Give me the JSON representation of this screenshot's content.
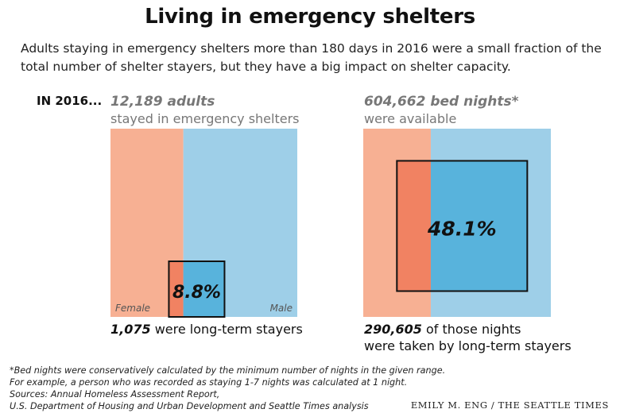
{
  "title": "Living in emergency shelters",
  "subtitle": "Adults staying in emergency shelters more than 180 days in 2016 were a small fraction of the total number of shelter stayers, but they have a big impact on shelter capacity.",
  "period_label": "IN 2016...",
  "colors": {
    "female_light": "#f7b093",
    "female_dark": "#f18262",
    "male_light": "#9ecfe8",
    "male_dark": "#58b3dc",
    "outline": "#111111"
  },
  "chart_data": [
    {
      "type": "area",
      "header_value": "12,189 adults",
      "header_text": "stayed in emergency shelters",
      "total": 12189,
      "split": {
        "female_fraction": 0.39,
        "male_fraction": 0.61
      },
      "categories": [
        "Female",
        "Male"
      ],
      "highlight_value": 1075,
      "highlight_fraction": 0.088,
      "highlight_label": "8.8%",
      "footer_value": "1,075",
      "footer_text": "were long-term stayers"
    },
    {
      "type": "area",
      "header_value": "604,662 bed nights*",
      "header_text": "were available",
      "total": 604662,
      "split": {
        "female_fraction": 0.36,
        "male_fraction": 0.64
      },
      "categories": [],
      "highlight_value": 290605,
      "highlight_fraction": 0.481,
      "highlight_label": "48.1%",
      "footer_value": "290,605",
      "footer_text_line1": "of those nights",
      "footer_text_line2": "were taken by long-term stayers"
    }
  ],
  "footnote": {
    "line1": "*Bed nights were conservatively calculated by the minimum number of nights in the given range.",
    "line2": "For example, a person who was recorded as staying 1-7 nights was calculated at 1 night.",
    "line3": "Sources: Annual Homeless Assessment Report,",
    "line4": "U.S. Department of Housing and Urban Development and Seattle Times analysis"
  },
  "credit": "EMILY M. ENG / THE SEATTLE TIMES"
}
